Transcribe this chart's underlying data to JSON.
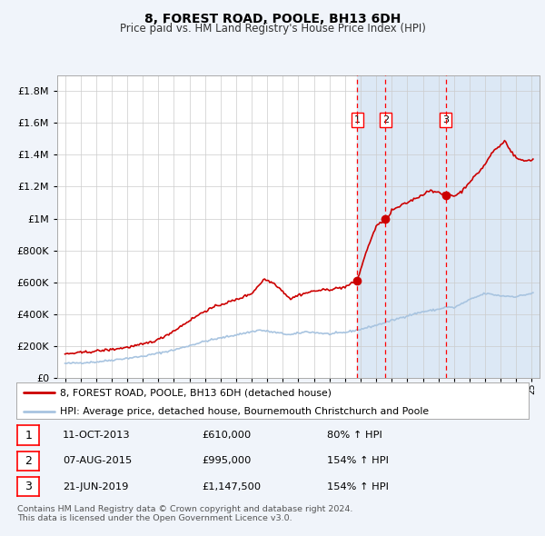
{
  "title": "8, FOREST ROAD, POOLE, BH13 6DH",
  "subtitle": "Price paid vs. HM Land Registry's House Price Index (HPI)",
  "footer_line1": "Contains HM Land Registry data © Crown copyright and database right 2024.",
  "footer_line2": "This data is licensed under the Open Government Licence v3.0.",
  "legend_line1": "8, FOREST ROAD, POOLE, BH13 6DH (detached house)",
  "legend_line2": "HPI: Average price, detached house, Bournemouth Christchurch and Poole",
  "transactions": [
    {
      "num": 1,
      "date": "11-OCT-2013",
      "price": 610000,
      "hpi_pct": "80%",
      "direction": "↑",
      "date_float": 2013.78
    },
    {
      "num": 2,
      "date": "07-AUG-2015",
      "price": 995000,
      "hpi_pct": "154%",
      "direction": "↑",
      "date_float": 2015.6
    },
    {
      "num": 3,
      "date": "21-JUN-2019",
      "price": 1147500,
      "hpi_pct": "154%",
      "direction": "↑",
      "date_float": 2019.47
    }
  ],
  "hpi_color": "#a8c4e0",
  "price_color": "#cc0000",
  "background_color": "#f0f4fa",
  "plot_bg_color": "#ffffff",
  "shade_color": "#dce8f5",
  "grid_color": "#cccccc",
  "ylim": [
    0,
    1900000
  ],
  "xlim_start": 1994.5,
  "xlim_end": 2025.5
}
